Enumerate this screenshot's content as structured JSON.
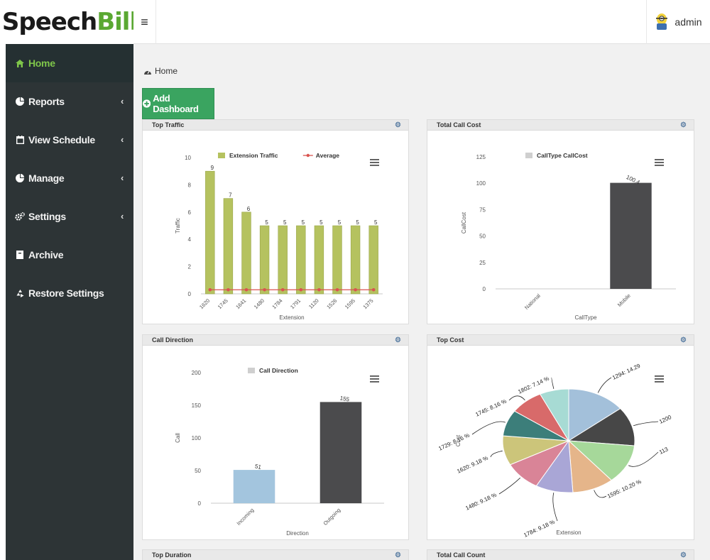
{
  "brand": {
    "speech": "Speech",
    "bill": "Bill"
  },
  "topbar": {
    "menu_glyph": "≡",
    "user": "admin"
  },
  "sidebar": {
    "items": [
      {
        "label": "Home",
        "icon": "home-icon",
        "active": true,
        "chev": false
      },
      {
        "label": "Reports",
        "icon": "pie-chart-icon",
        "chev": true
      },
      {
        "label": "View Schedule",
        "icon": "calendar-icon",
        "chev": true
      },
      {
        "label": "Manage",
        "icon": "pie-chart-icon",
        "chev": true
      },
      {
        "label": "Settings",
        "icon": "gears-icon",
        "chev": true
      },
      {
        "label": "Archive",
        "icon": "archive-icon",
        "chev": false
      },
      {
        "label": "Restore Settings",
        "icon": "recycle-icon",
        "chev": false
      }
    ]
  },
  "breadcrumb": {
    "label": "Home"
  },
  "add_dashboard": {
    "label": "Add Dashboard"
  },
  "panels": {
    "top_traffic": {
      "title": "Top Traffic"
    },
    "total_call_cost": {
      "title": "Total Call Cost"
    },
    "call_direction": {
      "title": "Call Direction"
    },
    "top_cost": {
      "title": "Top Cost"
    },
    "top_duration": {
      "title": "Top Duration"
    },
    "total_call_count": {
      "title": "Total Call Count"
    }
  },
  "colors": {
    "sidebar": "#2d3436",
    "accent": "#7fc64a",
    "button": "#3aa460",
    "olive": "#b5c25f",
    "dark_bar": "#4b4b4d",
    "light_blue_bar": "#a3c5de"
  },
  "chart_data": [
    {
      "id": "top_traffic",
      "type": "bar",
      "categories": [
        "1620",
        "1745",
        "1641",
        "1480",
        "1784",
        "1791",
        "1120",
        "1526",
        "1595",
        "1375"
      ],
      "series": [
        {
          "name": "Extension Traffic",
          "values": [
            9,
            7,
            6,
            5,
            5,
            5,
            5,
            5,
            5,
            5
          ]
        },
        {
          "name": "Average",
          "values": [
            0.3,
            0.3,
            0.3,
            0.3,
            0.3,
            0.3,
            0.3,
            0.3,
            0.3,
            0.3
          ]
        }
      ],
      "data_labels": [
        "9",
        "7",
        "6",
        "5",
        "5",
        "5",
        "5",
        "5",
        "5",
        "5"
      ],
      "xlabel": "Extension",
      "ylabel": "Traffic",
      "yticks": [
        "0",
        "2",
        "4",
        "6",
        "8",
        "10"
      ],
      "ylim": [
        0,
        10
      ],
      "legend": "top"
    },
    {
      "id": "total_call_cost",
      "type": "bar",
      "categories": [
        "National",
        "Mobile"
      ],
      "series": [
        {
          "name": "CallType CallCost",
          "values": [
            0,
            100.4
          ]
        }
      ],
      "data_labels": [
        "",
        "100.4"
      ],
      "xlabel": "CallType",
      "ylabel": "CallCost",
      "yticks": [
        "0",
        "25",
        "50",
        "75",
        "100",
        "125"
      ],
      "ylim": [
        0,
        125
      ],
      "legend": "top"
    },
    {
      "id": "call_direction",
      "type": "bar",
      "categories": [
        "Incoming",
        "Outgoing"
      ],
      "series": [
        {
          "name": "Call Direction",
          "values": [
            51,
            155
          ]
        }
      ],
      "data_labels": [
        "51",
        "155"
      ],
      "xlabel": "Direction",
      "ylabel": "Call",
      "yticks": [
        "0",
        "50",
        "100",
        "150",
        "200"
      ],
      "ylim": [
        0,
        200
      ],
      "legend": "top"
    },
    {
      "id": "top_cost",
      "type": "pie",
      "slices": [
        {
          "label": "1294: 14.29",
          "value": 14.29,
          "color": "#a3c0da"
        },
        {
          "label": "1200",
          "value": 12.24,
          "color": "#474747"
        },
        {
          "label": "113",
          "value": 12.24,
          "color": "#a6d89a"
        },
        {
          "label": "1595: 10.20 %",
          "value": 10.2,
          "color": "#e5b58a"
        },
        {
          "label": "1784: 9.18 %",
          "value": 9.18,
          "color": "#a9a6d6"
        },
        {
          "label": "1480: 9.18 %",
          "value": 9.18,
          "color": "#d98497"
        },
        {
          "label": "1620: 9.18 %",
          "value": 9.18,
          "color": "#ccc57a"
        },
        {
          "label": "1729: 8.16 %",
          "value": 8.16,
          "color": "#3c7e7a"
        },
        {
          "label": "1745: 8.16 %",
          "value": 8.16,
          "color": "#d86a6a"
        },
        {
          "label": "1802: 7.14 %",
          "value": 7.14,
          "color": "#a7dbd4"
        }
      ],
      "xlabel": "Extension",
      "ylabel": "Cost"
    }
  ]
}
